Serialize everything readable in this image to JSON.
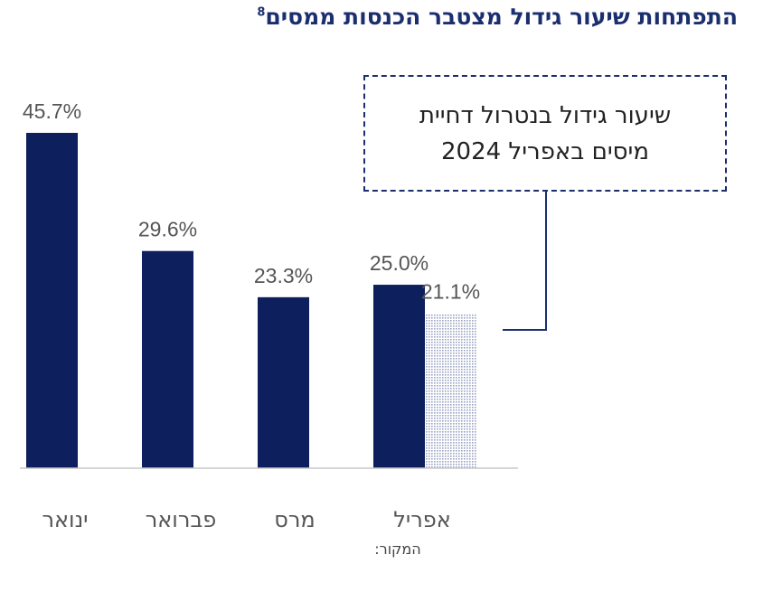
{
  "title": "התפתחות שיעור גידול מצטבר הכנסות ממסים",
  "title_footnote": "8",
  "callout": {
    "line1": "שיעור גידול בנטרול דחיית",
    "line2": "מיסים באפריל 2024"
  },
  "source_label": "המקור:",
  "colors": {
    "bar": "#0d1f5c",
    "bar_adjusted_pattern": "#9aa4c4",
    "title": "#1b2f6e",
    "label": "#555555",
    "axis": "#c8c8c8"
  },
  "chart_data": {
    "type": "bar",
    "title": "התפתחות שיעור גידול מצטבר הכנסות ממסים",
    "xlabel": "",
    "ylabel": "",
    "ylim": [
      0,
      45.7
    ],
    "grid": false,
    "categories": [
      "ינואר",
      "פברואר",
      "מרס",
      "אפריל"
    ],
    "series": [
      {
        "values": [
          45.7,
          29.6,
          23.3,
          25.0
        ],
        "labels": [
          "45.7%",
          "29.6%",
          "23.3%",
          "25.0%"
        ]
      },
      {
        "name": "שיעור גידול בנטרול דחיית מיסים באפריל 2024",
        "values": [
          null,
          null,
          null,
          21.1
        ],
        "labels": [
          "",
          "",
          "",
          "21.1%"
        ]
      }
    ]
  }
}
